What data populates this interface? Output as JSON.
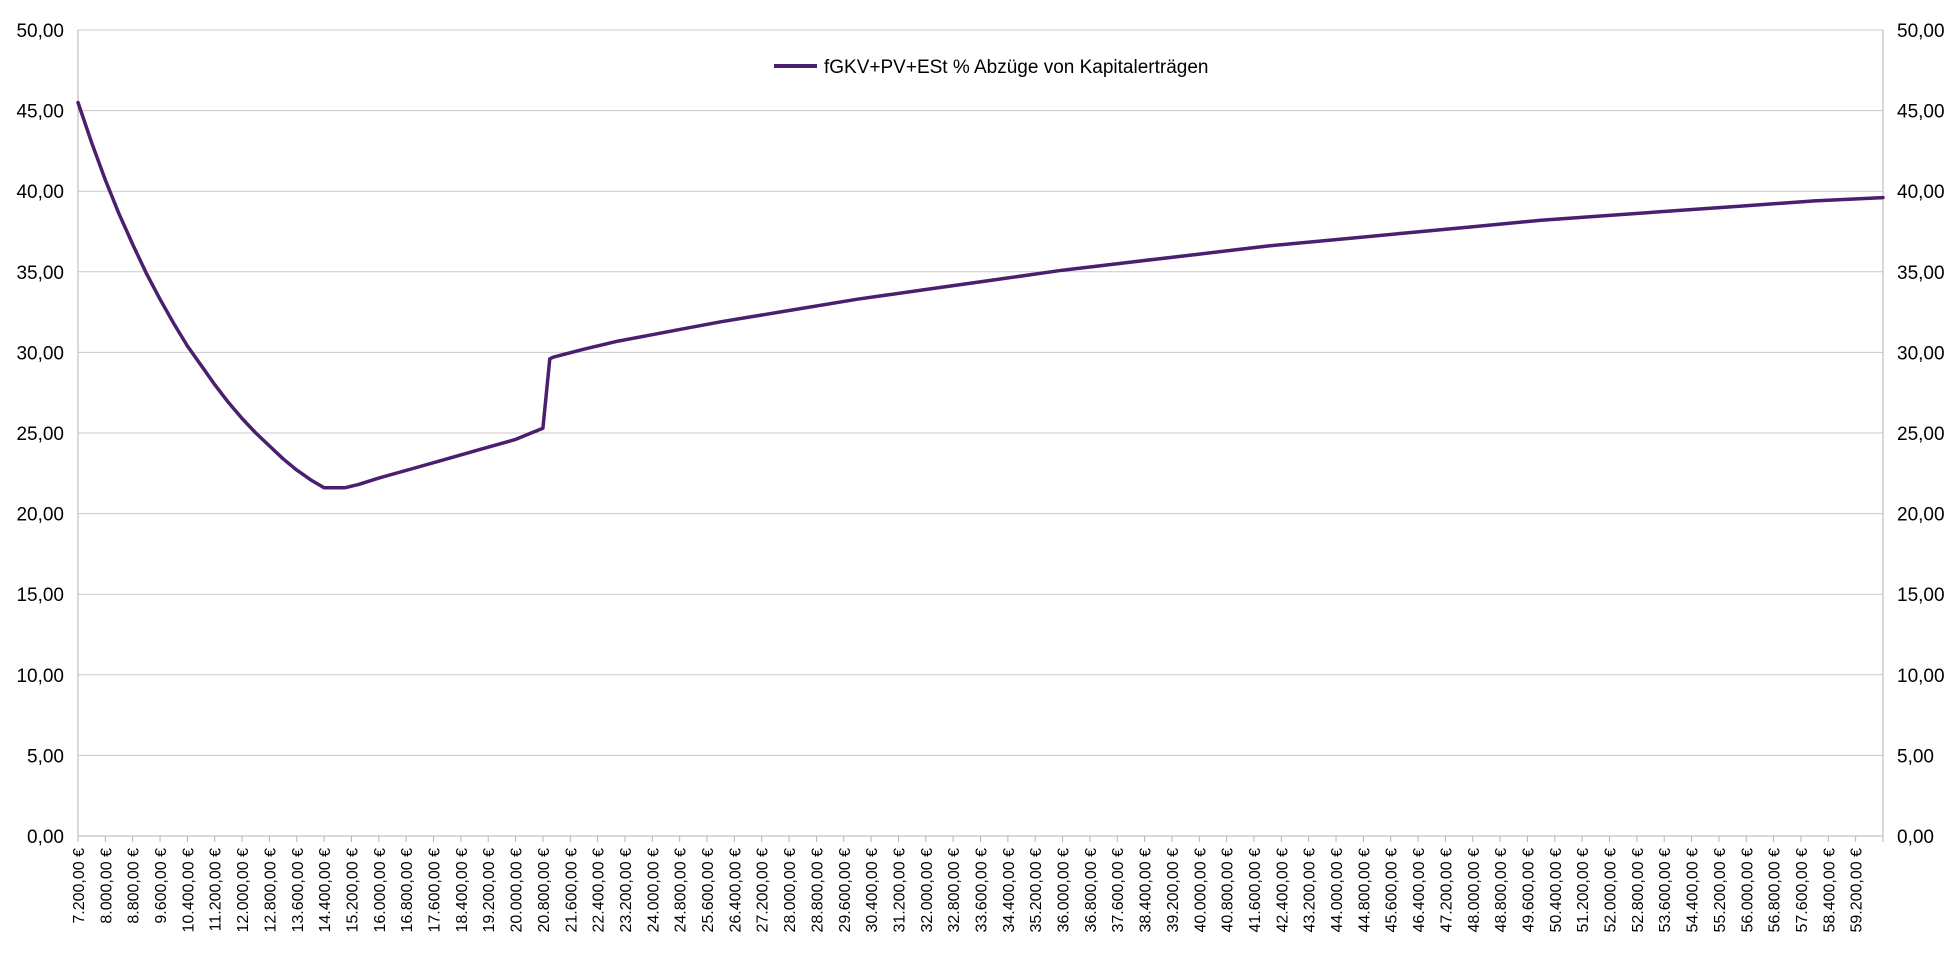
{
  "chart_data": {
    "type": "line",
    "title": "",
    "xlabel": "",
    "ylabel": "",
    "ylim": [
      0,
      50
    ],
    "y_ticks": [
      "0,00",
      "5,00",
      "10,00",
      "15,00",
      "20,00",
      "25,00",
      "30,00",
      "35,00",
      "40,00",
      "45,00",
      "50,00"
    ],
    "y2_ticks": [
      "0,00",
      "5,00",
      "10,00",
      "15,00",
      "20,00",
      "25,00",
      "30,00",
      "35,00",
      "40,00",
      "45,00",
      "50,00"
    ],
    "x_ticks": [
      "7.200,00 €",
      "8.000,00 €",
      "8.800,00 €",
      "9.600,00 €",
      "10.400,00 €",
      "11.200,00 €",
      "12.000,00 €",
      "12.800,00 €",
      "13.600,00 €",
      "14.400,00 €",
      "15.200,00 €",
      "16.000,00 €",
      "16.800,00 €",
      "17.600,00 €",
      "18.400,00 €",
      "19.200,00 €",
      "20.000,00 €",
      "20.800,00 €",
      "21.600,00 €",
      "22.400,00 €",
      "23.200,00 €",
      "24.000,00 €",
      "24.800,00 €",
      "25.600,00 €",
      "26.400,00 €",
      "27.200,00 €",
      "28.000,00 €",
      "28.800,00 €",
      "29.600,00 €",
      "30.400,00 €",
      "31.200,00 €",
      "32.000,00 €",
      "32.800,00 €",
      "33.600,00 €",
      "34.400,00 €",
      "35.200,00 €",
      "36.000,00 €",
      "36.800,00 €",
      "37.600,00 €",
      "38.400,00 €",
      "39.200,00 €",
      "40.000,00 €",
      "40.800,00 €",
      "41.600,00 €",
      "42.400,00 €",
      "43.200,00 €",
      "44.000,00 €",
      "44.800,00 €",
      "45.600,00 €",
      "46.400,00 €",
      "47.200,00 €",
      "48.000,00 €",
      "48.800,00 €",
      "49.600,00 €",
      "50.400,00 €",
      "51.200,00 €",
      "52.000,00 €",
      "52.800,00 €",
      "53.600,00 €",
      "54.400,00 €",
      "55.200,00 €",
      "56.000,00 €",
      "56.800,00 €",
      "57.600,00 €",
      "58.400,00 €",
      "59.200,00 €"
    ],
    "x_range": [
      7200,
      60000
    ],
    "grid": true,
    "legend_position": "top-center",
    "series": [
      {
        "name": "fGKV+PV+ESt % Abzüge von Kapitalerträgen",
        "color": "#4b1f6f",
        "x": [
          7200,
          7600,
          8000,
          8400,
          8800,
          9200,
          9600,
          10000,
          10400,
          10800,
          11200,
          11600,
          12000,
          12400,
          12800,
          13200,
          13600,
          14000,
          14400,
          14800,
          15000,
          15400,
          16000,
          17000,
          18000,
          19000,
          20000,
          20800,
          21000,
          21100,
          22000,
          23000,
          24000,
          25000,
          26000,
          28000,
          30000,
          32000,
          34000,
          36000,
          38000,
          40000,
          42000,
          44000,
          46000,
          48000,
          50000,
          52000,
          54000,
          56000,
          58000,
          60000
        ],
        "values": [
          45.5,
          43.0,
          40.7,
          38.6,
          36.7,
          34.9,
          33.3,
          31.8,
          30.4,
          29.2,
          28.0,
          26.9,
          25.9,
          25.0,
          24.2,
          23.4,
          22.7,
          22.1,
          21.6,
          21.6,
          21.6,
          21.8,
          22.2,
          22.8,
          23.4,
          24.0,
          24.6,
          25.3,
          29.6,
          29.7,
          30.2,
          30.7,
          31.1,
          31.5,
          31.9,
          32.6,
          33.3,
          33.9,
          34.5,
          35.1,
          35.6,
          36.1,
          36.6,
          37.0,
          37.4,
          37.8,
          38.2,
          38.5,
          38.8,
          39.1,
          39.4,
          39.6
        ]
      }
    ]
  }
}
